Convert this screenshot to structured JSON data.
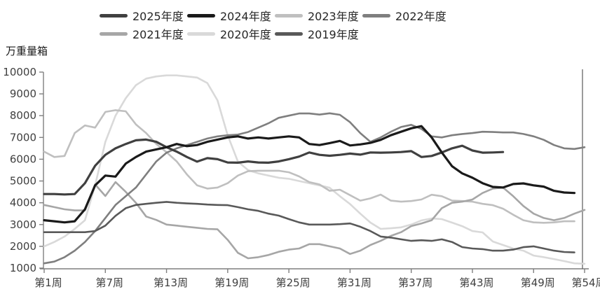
{
  "title": "万重量箱",
  "legend": {
    "rows": [
      [
        "2025年度",
        "2024年度",
        "2023年度",
        "2022年度"
      ],
      [
        "2021年度",
        "2020年度",
        "2019年度"
      ]
    ]
  },
  "chart_data": {
    "type": "line",
    "ylabel": "万重量箱",
    "ylim": [
      1000,
      10000
    ],
    "y_ticks": [
      1000,
      2000,
      3000,
      4000,
      5000,
      6000,
      7000,
      8000,
      9000,
      10000
    ],
    "xlim": [
      1,
      54
    ],
    "x_ticks": [
      {
        "week": 1,
        "label": "第1周"
      },
      {
        "week": 7,
        "label": "第7周"
      },
      {
        "week": 13,
        "label": "第13周"
      },
      {
        "week": 19,
        "label": "第19周"
      },
      {
        "week": 25,
        "label": "第25周"
      },
      {
        "week": 31,
        "label": "第31周"
      },
      {
        "week": 37,
        "label": "第37周"
      },
      {
        "week": 43,
        "label": "第43周"
      },
      {
        "week": 49,
        "label": "第49周"
      },
      {
        "week": 54,
        "label": "第54周"
      }
    ],
    "grid": false,
    "legend_position": "top",
    "axis_color": "#7f7f7f",
    "draw_order": [
      "2020年度",
      "2023年度",
      "2021年度",
      "2022年度",
      "2019年度",
      "2025年度",
      "2024年度"
    ],
    "series": [
      {
        "name": "2025年度",
        "color": "#404040",
        "width": 3.2,
        "start_week": 1,
        "values": [
          4400,
          4400,
          4380,
          4400,
          4900,
          5700,
          6200,
          6500,
          6700,
          6870,
          6900,
          6800,
          6550,
          6350,
          6100,
          5890,
          6050,
          6000,
          5850,
          5840,
          5900,
          5850,
          5840,
          5900,
          6000,
          6120,
          6310,
          6200,
          6160,
          6200,
          6260,
          6210,
          6310,
          6300,
          6310,
          6330,
          6370,
          6100,
          6150,
          6310,
          6500,
          6620,
          6400,
          6300,
          6310,
          6330
        ]
      },
      {
        "name": "2024年度",
        "color": "#1a1a1a",
        "width": 3.2,
        "start_week": 1,
        "values": [
          3200,
          3150,
          3100,
          3150,
          3700,
          4800,
          5250,
          5200,
          5800,
          6100,
          6350,
          6450,
          6550,
          6700,
          6600,
          6650,
          6800,
          6900,
          7000,
          7050,
          6950,
          7000,
          6950,
          7000,
          7050,
          7000,
          6700,
          6650,
          6740,
          6840,
          6630,
          6680,
          6750,
          6890,
          7100,
          7260,
          7420,
          7520,
          7000,
          6310,
          5680,
          5350,
          5150,
          4900,
          4730,
          4700,
          4860,
          4890,
          4800,
          4740,
          4550,
          4470,
          4450
        ]
      },
      {
        "name": "2023年度",
        "color": "#bfbfbf",
        "width": 2.6,
        "start_week": 1,
        "values": [
          6350,
          6100,
          6150,
          7200,
          7550,
          7450,
          8170,
          8250,
          8200,
          7600,
          7200,
          6700,
          6320,
          5900,
          5300,
          4800,
          4650,
          4700,
          4900,
          5250,
          5450,
          5470,
          5470,
          5470,
          5400,
          5210,
          4950,
          4840,
          4550,
          4600,
          4350,
          4100,
          4200,
          4375,
          4100,
          4050,
          4080,
          4150,
          4370,
          4300,
          4100,
          4080,
          4050,
          3950,
          3890,
          3730,
          3450,
          3200,
          3100,
          3080,
          3100,
          3150,
          3150
        ]
      },
      {
        "name": "2022年度",
        "color": "#7f7f7f",
        "width": 2.6,
        "start_week": 1,
        "values": [
          1220,
          1300,
          1500,
          1800,
          2200,
          2700,
          3300,
          3900,
          4300,
          4700,
          5300,
          5900,
          6300,
          6500,
          6650,
          6800,
          6950,
          7050,
          7100,
          7130,
          7250,
          7450,
          7650,
          7900,
          8000,
          8100,
          8100,
          8050,
          8110,
          8040,
          7700,
          7200,
          6800,
          7000,
          7260,
          7480,
          7580,
          7390,
          7050,
          7000,
          7100,
          7160,
          7200,
          7260,
          7250,
          7230,
          7230,
          7160,
          7050,
          6890,
          6650,
          6500,
          6470,
          6550
        ]
      },
      {
        "name": "2021年度",
        "color": "#a6a6a6",
        "width": 2.6,
        "start_week": 1,
        "values": [
          3900,
          3800,
          3700,
          3650,
          3650,
          4840,
          4310,
          4950,
          4500,
          4000,
          3370,
          3210,
          3000,
          2950,
          2900,
          2850,
          2800,
          2780,
          2300,
          1700,
          1450,
          1500,
          1600,
          1750,
          1850,
          1900,
          2100,
          2100,
          2000,
          1900,
          1650,
          1800,
          2060,
          2250,
          2480,
          2650,
          2930,
          3050,
          3200,
          3750,
          4000,
          4050,
          4150,
          4450,
          4650,
          4700,
          4300,
          3850,
          3500,
          3300,
          3200,
          3300,
          3500,
          3670
        ]
      },
      {
        "name": "2020年度",
        "color": "#d9d9d9",
        "width": 2.6,
        "start_week": 1,
        "values": [
          2000,
          2200,
          2450,
          2800,
          3200,
          4800,
          6800,
          8000,
          8800,
          9400,
          9700,
          9800,
          9850,
          9850,
          9800,
          9750,
          9500,
          8700,
          7100,
          5890,
          5500,
          5350,
          5250,
          5150,
          5100,
          5000,
          4900,
          4800,
          4690,
          4300,
          3940,
          3500,
          3090,
          2800,
          2830,
          2870,
          3000,
          3190,
          3280,
          3250,
          3090,
          2925,
          2700,
          2640,
          2220,
          2060,
          1900,
          1800,
          1575,
          1500,
          1415,
          1320,
          1220,
          1200
        ]
      },
      {
        "name": "2019年度",
        "color": "#595959",
        "width": 2.6,
        "start_week": 1,
        "values": [
          2650,
          2650,
          2650,
          2650,
          2650,
          2700,
          2950,
          3400,
          3750,
          3900,
          3950,
          4000,
          4040,
          4000,
          3970,
          3950,
          3920,
          3900,
          3890,
          3800,
          3700,
          3630,
          3500,
          3410,
          3250,
          3100,
          3000,
          3000,
          3000,
          3020,
          3050,
          2900,
          2700,
          2450,
          2400,
          2320,
          2250,
          2280,
          2250,
          2320,
          2200,
          1965,
          1900,
          1870,
          1800,
          1800,
          1850,
          1960,
          2000,
          1900,
          1800,
          1740,
          1720
        ]
      }
    ]
  }
}
